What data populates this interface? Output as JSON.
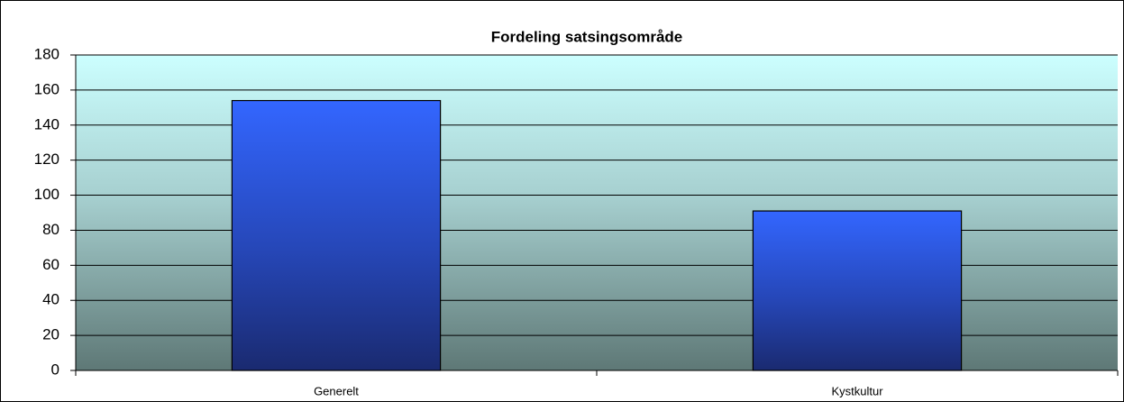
{
  "chart_data": {
    "type": "bar",
    "title": "Fordeling satsingsområde",
    "categories": [
      "Generelt",
      "Kystkultur"
    ],
    "values": [
      154,
      91
    ],
    "color": "#3366ff",
    "ylim": [
      0,
      180
    ],
    "yticks": [
      0,
      20,
      40,
      60,
      80,
      100,
      120,
      140,
      160,
      180
    ],
    "grid": true
  }
}
